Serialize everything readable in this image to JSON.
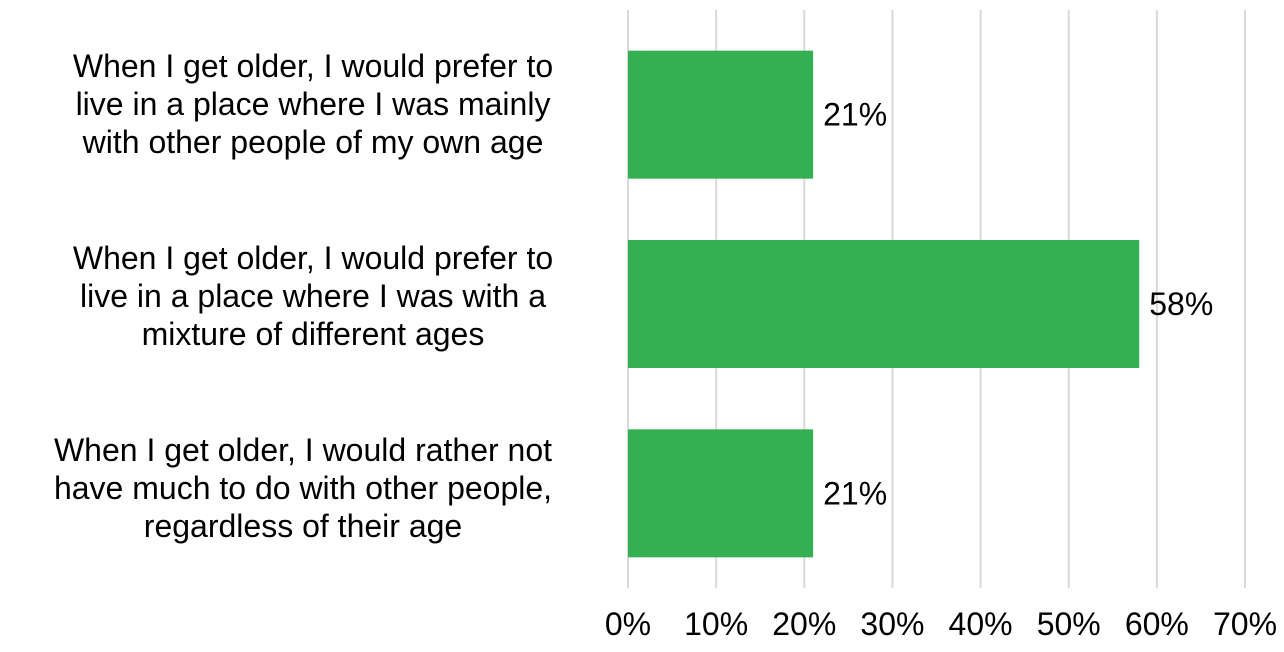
{
  "chart_data": {
    "type": "bar",
    "orientation": "horizontal",
    "categories": [
      "When I get older, I would prefer to\nlive in a place where I was mainly\nwith other people of my own age",
      "When I get older, I would prefer to\nlive in a place where I was with a\nmixture of different ages",
      "When I get older, I would rather not\nhave much to do with other people,\nregardless of their age"
    ],
    "values": [
      21,
      58,
      21
    ],
    "data_labels": [
      "21%",
      "58%",
      "21%"
    ],
    "xlim": [
      0,
      70
    ],
    "xticks": [
      0,
      10,
      20,
      30,
      40,
      50,
      60,
      70
    ],
    "xtick_labels": [
      "0%",
      "10%",
      "20%",
      "30%",
      "40%",
      "50%",
      "60%",
      "70%"
    ],
    "grid": "vertical",
    "legend": "none",
    "bar_color": "#34b052",
    "grid_color": "#d9d9d9"
  }
}
